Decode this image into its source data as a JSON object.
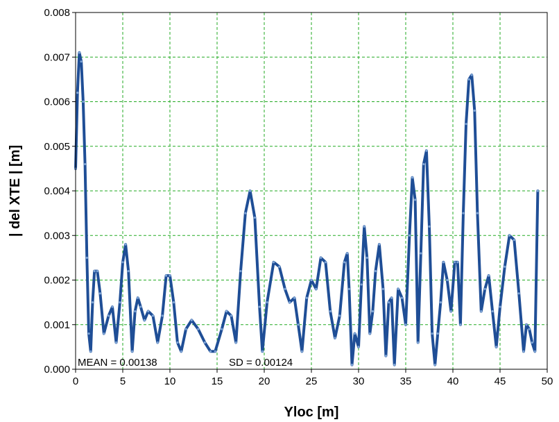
{
  "chart_data": {
    "type": "line",
    "title": "",
    "xlabel": "Yloc [m]",
    "ylabel": "| del XTE | [m]",
    "xlim": [
      0,
      50
    ],
    "ylim": [
      0,
      0.008
    ],
    "xticks": [
      0,
      5,
      10,
      15,
      20,
      25,
      30,
      35,
      40,
      45,
      50
    ],
    "yticks": [
      0.0,
      0.001,
      0.002,
      0.003,
      0.004,
      0.005,
      0.006,
      0.007,
      0.008
    ],
    "ytick_labels": [
      "0.000",
      "0.001",
      "0.002",
      "0.003",
      "0.004",
      "0.005",
      "0.006",
      "0.007",
      "0.008"
    ],
    "grid": true,
    "colors": {
      "line": "#1f4e96",
      "grid": "#22aa22",
      "frame": "#000000"
    },
    "annotations": {
      "mean": "MEAN =  0.00138",
      "sd": "SD = 0.00124"
    },
    "series": [
      {
        "x": [
          0.0,
          0.2,
          0.4,
          0.6,
          0.8,
          1.0,
          1.2,
          1.4,
          1.6,
          1.8,
          2.0,
          2.3,
          2.6,
          3.0,
          3.5,
          3.9,
          4.3,
          4.7,
          5.0,
          5.3,
          5.6,
          6.0,
          6.3,
          6.6,
          6.9,
          7.3,
          7.7,
          8.2,
          8.7,
          9.2,
          9.6,
          10.0,
          10.4,
          10.8,
          11.2,
          11.7,
          12.3,
          13.0,
          13.7,
          14.3,
          14.8,
          15.5,
          16.0,
          16.5,
          17.0,
          17.5,
          18.0,
          18.5,
          19.0,
          19.5,
          19.8,
          20.3,
          21.0,
          21.6,
          22.2,
          22.7,
          23.2,
          23.6,
          24.0,
          24.5,
          25.0,
          25.5,
          26.0,
          26.5,
          27.0,
          27.5,
          28.0,
          28.5,
          28.8,
          29.0,
          29.3,
          29.6,
          30.0,
          30.3,
          30.6,
          30.9,
          31.2,
          31.5,
          31.8,
          32.2,
          32.6,
          32.9,
          33.2,
          33.5,
          33.8,
          34.2,
          34.6,
          35.0,
          35.4,
          35.7,
          36.0,
          36.3,
          36.6,
          36.9,
          37.2,
          37.5,
          37.8,
          38.1,
          38.4,
          38.7,
          39.0,
          39.4,
          39.8,
          40.2,
          40.5,
          40.8,
          41.1,
          41.4,
          41.7,
          42.0,
          42.3,
          42.6,
          43.0,
          43.4,
          43.8,
          44.2,
          44.6,
          45.0,
          45.5,
          46.0,
          46.5,
          47.0,
          47.5,
          47.8,
          48.1,
          48.4,
          48.7,
          49.0
        ],
        "values": [
          0.0045,
          0.0062,
          0.0071,
          0.0069,
          0.006,
          0.0046,
          0.0025,
          0.0008,
          0.0004,
          0.0015,
          0.0022,
          0.0022,
          0.0017,
          0.0008,
          0.0012,
          0.0014,
          0.0006,
          0.0015,
          0.0024,
          0.0028,
          0.0022,
          0.0004,
          0.0013,
          0.0016,
          0.0014,
          0.0011,
          0.0013,
          0.0012,
          0.0006,
          0.0012,
          0.0021,
          0.0021,
          0.0015,
          0.0006,
          0.0004,
          0.0009,
          0.0011,
          0.0009,
          0.0006,
          0.0004,
          0.0004,
          0.0009,
          0.0013,
          0.0012,
          0.0006,
          0.0022,
          0.0035,
          0.004,
          0.0034,
          0.0014,
          0.0004,
          0.0015,
          0.0024,
          0.0023,
          0.0018,
          0.0015,
          0.0016,
          0.001,
          0.0004,
          0.0016,
          0.002,
          0.0018,
          0.0025,
          0.0024,
          0.0013,
          0.0007,
          0.0012,
          0.0024,
          0.0026,
          0.0018,
          0.0001,
          0.0008,
          0.0005,
          0.0019,
          0.0032,
          0.0025,
          0.0008,
          0.0013,
          0.0022,
          0.0028,
          0.0018,
          0.0003,
          0.0015,
          0.0016,
          0.0001,
          0.0018,
          0.0016,
          0.001,
          0.003,
          0.0043,
          0.0038,
          0.0006,
          0.0026,
          0.0046,
          0.0049,
          0.0032,
          0.0008,
          0.0001,
          0.0008,
          0.0015,
          0.0024,
          0.002,
          0.0013,
          0.0024,
          0.0024,
          0.001,
          0.0035,
          0.0055,
          0.0065,
          0.0066,
          0.0058,
          0.0035,
          0.0013,
          0.0018,
          0.0021,
          0.0013,
          0.0005,
          0.0014,
          0.0023,
          0.003,
          0.0029,
          0.0017,
          0.0004,
          0.001,
          0.0009,
          0.0006,
          0.0004,
          0.004
        ]
      }
    ]
  }
}
